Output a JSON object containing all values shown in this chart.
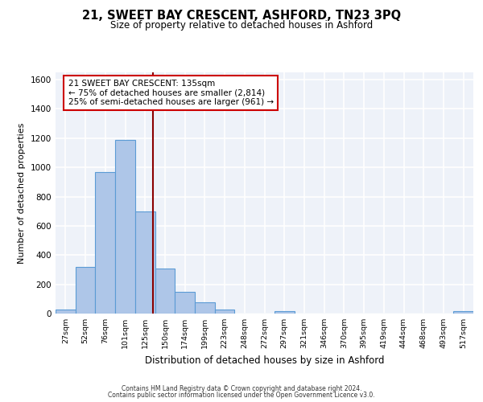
{
  "title": "21, SWEET BAY CRESCENT, ASHFORD, TN23 3PQ",
  "subtitle": "Size of property relative to detached houses in Ashford",
  "xlabel": "Distribution of detached houses by size in Ashford",
  "ylabel": "Number of detached properties",
  "categories": [
    "27sqm",
    "52sqm",
    "76sqm",
    "101sqm",
    "125sqm",
    "150sqm",
    "174sqm",
    "199sqm",
    "223sqm",
    "248sqm",
    "272sqm",
    "297sqm",
    "321sqm",
    "346sqm",
    "370sqm",
    "395sqm",
    "419sqm",
    "444sqm",
    "468sqm",
    "493sqm",
    "517sqm"
  ],
  "values": [
    25,
    320,
    970,
    1190,
    700,
    310,
    150,
    75,
    30,
    0,
    0,
    15,
    0,
    0,
    0,
    0,
    0,
    0,
    0,
    0,
    15
  ],
  "bar_color": "#aec6e8",
  "bar_edge_color": "#5b9bd5",
  "vline_color": "#8b0000",
  "annotation_line1": "21 SWEET BAY CRESCENT: 135sqm",
  "annotation_line2": "← 75% of detached houses are smaller (2,814)",
  "annotation_line3": "25% of semi-detached houses are larger (961) →",
  "ylim": [
    0,
    1650
  ],
  "yticks": [
    0,
    200,
    400,
    600,
    800,
    1000,
    1200,
    1400,
    1600
  ],
  "bg_color": "#eef2f9",
  "grid_color": "#ffffff",
  "footer_line1": "Contains HM Land Registry data © Crown copyright and database right 2024.",
  "footer_line2": "Contains public sector information licensed under the Open Government Licence v3.0."
}
